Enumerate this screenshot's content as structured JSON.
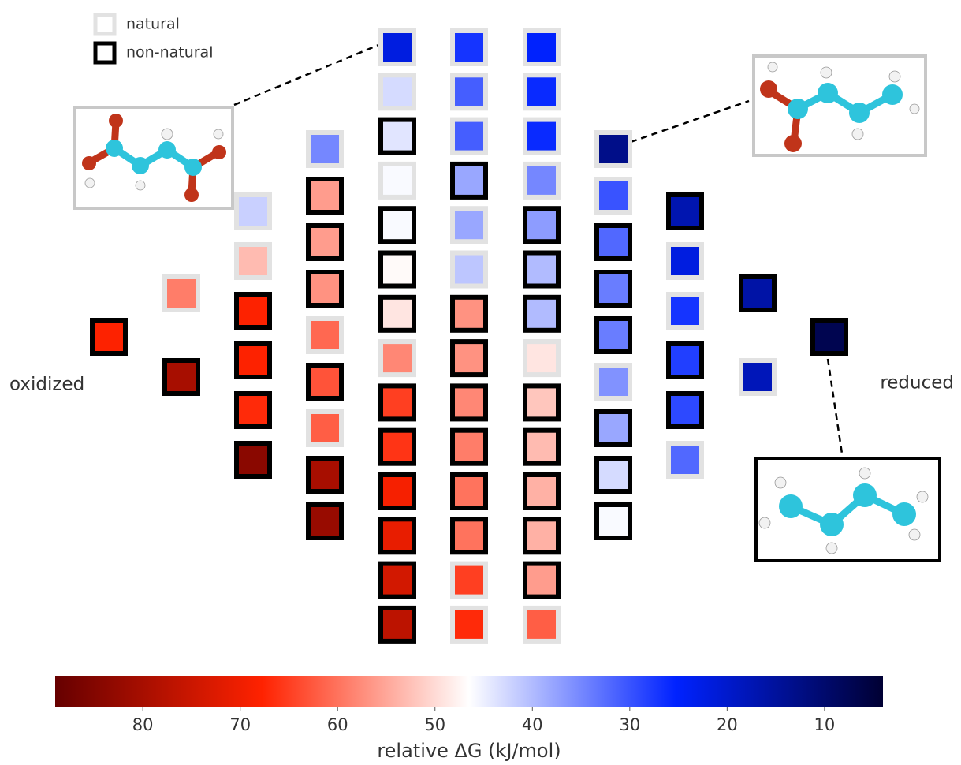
{
  "chart_data": {
    "type": "heatmap",
    "series": [
      {
        "name": "natural",
        "color": "#e2e2e2"
      },
      {
        "name": "non-natural",
        "color": "#000000"
      }
    ],
    "columns": [
      {
        "values": [
          68
        ],
        "kind": [
          1
        ]
      },
      {
        "values": [
          59,
          80
        ],
        "kind": [
          0,
          1
        ]
      },
      {
        "values": [
          42,
          53,
          68,
          68,
          67,
          84
        ],
        "kind": [
          0,
          0,
          1,
          1,
          1,
          1
        ]
      },
      {
        "values": [
          35,
          56,
          56,
          57,
          61,
          63,
          62,
          80,
          82
        ],
        "kind": [
          0,
          1,
          1,
          1,
          0,
          1,
          0,
          1,
          1
        ]
      },
      {
        "values": [
          22,
          43,
          44,
          46,
          46,
          47,
          49,
          58,
          65,
          66,
          69,
          71,
          74,
          77
        ],
        "kind": [
          0,
          0,
          1,
          0,
          1,
          1,
          1,
          0,
          1,
          1,
          1,
          1,
          1,
          1
        ]
      },
      {
        "values": [
          27,
          31,
          31,
          38,
          38,
          41,
          57,
          57,
          58,
          59,
          60,
          60,
          65,
          67
        ],
        "kind": [
          0,
          0,
          0,
          1,
          0,
          0,
          1,
          1,
          1,
          1,
          1,
          1,
          0,
          0
        ]
      },
      {
        "values": [
          25,
          26,
          26,
          35,
          37,
          40,
          40,
          49,
          52,
          53,
          54,
          54,
          56,
          62
        ],
        "kind": [
          0,
          0,
          0,
          0,
          1,
          1,
          1,
          0,
          1,
          1,
          1,
          1,
          1,
          0
        ]
      },
      {
        "values": [
          13,
          30,
          32,
          34,
          34,
          36,
          38,
          43,
          46
        ],
        "kind": [
          0,
          0,
          1,
          1,
          1,
          0,
          1,
          1,
          1
        ]
      },
      {
        "values": [
          17,
          22,
          27,
          28,
          29,
          32
        ],
        "kind": [
          1,
          0,
          0,
          1,
          1,
          0
        ]
      },
      {
        "values": [
          16,
          18
        ],
        "kind": [
          1,
          0
        ]
      },
      {
        "values": [
          7
        ],
        "kind": [
          1
        ]
      }
    ],
    "colormap": [
      "#660000",
      "#ff2200",
      "#ffffff",
      "#0022ff",
      "#000033"
    ],
    "clim": [
      89,
      4
    ],
    "cticks": [
      80,
      70,
      60,
      50,
      40,
      30,
      20,
      10
    ],
    "clabel": "relative ΔG (kJ/mol)",
    "annotations": {
      "left": "oxidized",
      "right": "reduced"
    }
  }
}
